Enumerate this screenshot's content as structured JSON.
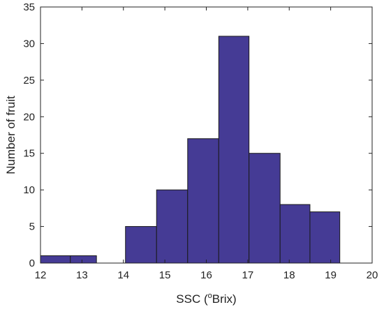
{
  "chart_data": {
    "type": "bar",
    "variant": "histogram",
    "title": "",
    "xlabel": {
      "prefix": "SSC (",
      "superscript": "o",
      "suffix": "Brix)"
    },
    "ylabel": "Number of fruit",
    "xlim": [
      12,
      20
    ],
    "ylim": [
      0,
      35
    ],
    "x_ticks": [
      12,
      13,
      14,
      15,
      16,
      17,
      18,
      19,
      20
    ],
    "y_ticks": [
      0,
      5,
      10,
      15,
      20,
      25,
      30,
      35
    ],
    "bins": [
      {
        "start": 12.0,
        "end": 12.72,
        "value": 1
      },
      {
        "start": 12.72,
        "end": 13.35,
        "value": 1
      },
      {
        "start": 13.35,
        "end": 14.05,
        "value": 0
      },
      {
        "start": 14.05,
        "end": 14.8,
        "value": 5
      },
      {
        "start": 14.8,
        "end": 15.55,
        "value": 10
      },
      {
        "start": 15.55,
        "end": 16.3,
        "value": 17
      },
      {
        "start": 16.3,
        "end": 17.03,
        "value": 31
      },
      {
        "start": 17.03,
        "end": 17.78,
        "value": 15
      },
      {
        "start": 17.78,
        "end": 18.5,
        "value": 8
      },
      {
        "start": 18.5,
        "end": 19.22,
        "value": 7
      }
    ],
    "grid": false,
    "legend": "none",
    "bar_color": "#453b95",
    "bar_edge_color": "#1a1a1a"
  }
}
